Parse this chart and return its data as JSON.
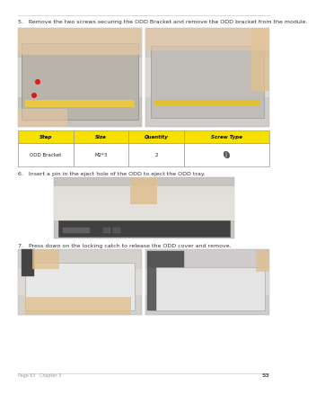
{
  "page_bg": "#ffffff",
  "step5_text": "5.   Remove the two screws securing the ODD Bracket and remove the ODD bracket from the module.",
  "step6_text": "6.   Insert a pin in the eject hole of the ODD to eject the ODD tray.",
  "step7_text": "7.   Press down on the locking catch to release the ODD cover and remove.",
  "table_header_bg": "#f5e000",
  "table_header_color": "#000000",
  "table_border_color": "#999999",
  "table_headers": [
    "Step",
    "Size",
    "Quantity",
    "Screw Type"
  ],
  "table_row": [
    "ODD Bracket",
    "M2*3",
    "2",
    ""
  ],
  "footer_line_color": "#cccccc",
  "footer_left_text": "Page 63   Chapter 3",
  "footer_right_text": "53",
  "text_color": "#333333",
  "text_fontsize": 4.5,
  "header_fontsize": 4.2,
  "top_line_color": "#cccccc"
}
